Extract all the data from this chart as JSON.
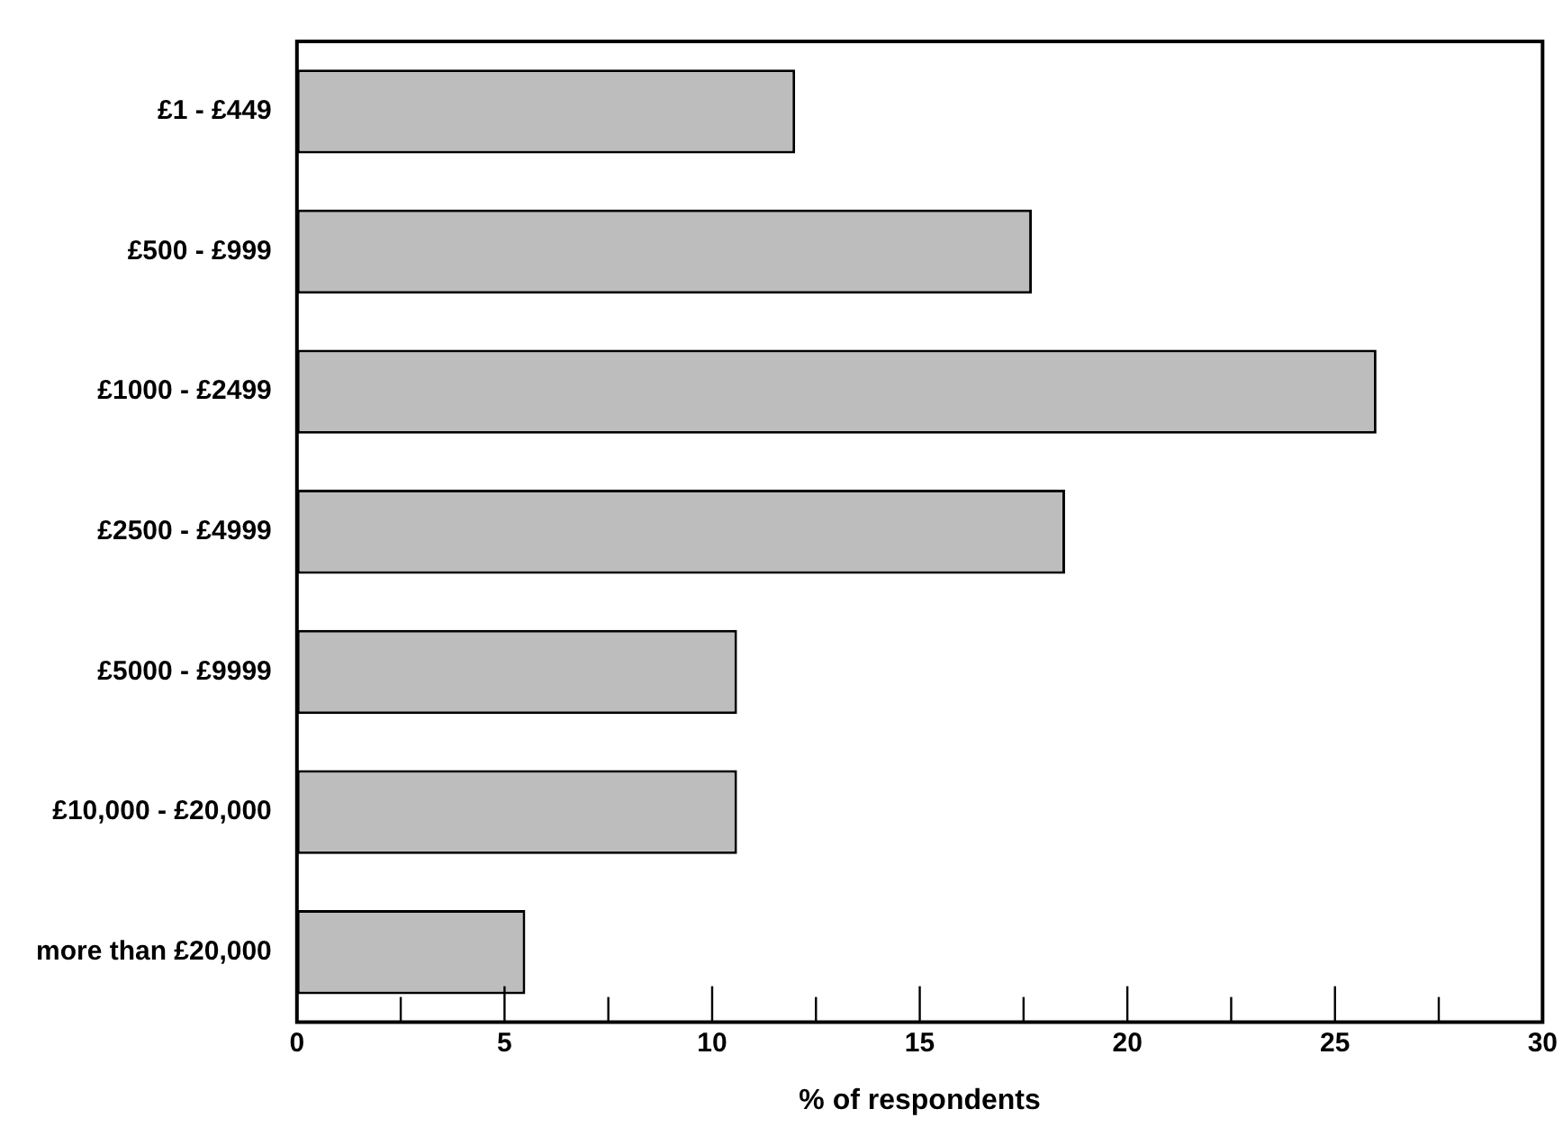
{
  "chart_data": {
    "type": "bar",
    "orientation": "horizontal",
    "xlabel": "% of respondents",
    "categories": [
      "£1 - £449",
      "£500 - £999",
      "£1000 - £2499",
      "£2500 - £4999",
      "£5000 - £9999",
      "£10,000 - £20,000",
      "more than £20,000"
    ],
    "values": [
      12.0,
      17.7,
      26.0,
      18.5,
      10.6,
      10.6,
      5.5
    ],
    "color": "#bdbdbd",
    "xlim": [
      0,
      30
    ],
    "xticks": [
      0,
      {
        "value": 2.5,
        "label": null
      },
      5,
      {
        "value": 7.5,
        "label": null
      },
      10,
      {
        "value": 12.5,
        "label": null
      },
      15,
      {
        "value": 17.5,
        "label": null
      },
      20,
      {
        "value": 22.5,
        "label": null
      },
      25,
      {
        "value": 27.5,
        "label": null
      },
      30
    ],
    "grid": false,
    "legend": false
  }
}
